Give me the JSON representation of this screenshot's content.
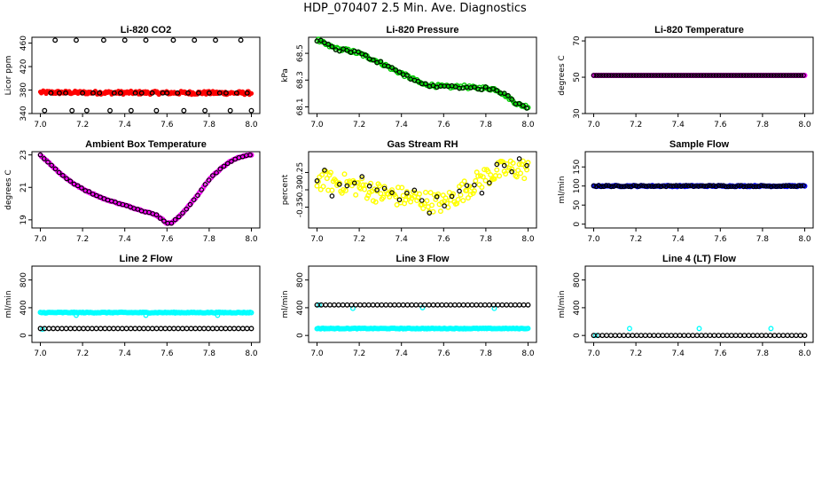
{
  "title": "HDP_070407  2.5 Min. Ave. Diagnostics",
  "colors": {
    "black": "#000000",
    "red": "#ff0000",
    "green": "#00cc00",
    "magenta": "#ff00ff",
    "yellow": "#ffff00",
    "blue": "#0000ff",
    "cyan": "#00ffff"
  },
  "chart_data": [
    {
      "id": "co2",
      "type": "scatter",
      "title": "Li-820 CO2",
      "ylabel": "Licor ppm",
      "xlim": [
        7.0,
        8.0
      ],
      "ylim": [
        340,
        470
      ],
      "xticks": [
        "7.0",
        "7.2",
        "7.4",
        "7.6",
        "7.8",
        "8.0"
      ],
      "yticks": [
        {
          "v": 340,
          "label": "340"
        },
        {
          "v": 380,
          "label": "380"
        },
        {
          "v": 420,
          "label": "420"
        },
        {
          "v": 460,
          "label": "460"
        }
      ],
      "series": [
        {
          "color": "red",
          "style": "band",
          "x": [
            7.0,
            8.0
          ],
          "y": [
            376,
            375
          ],
          "halfwidth": 3
        },
        {
          "color": "black",
          "style": "open",
          "x": [
            7.02,
            7.05,
            7.07,
            7.09,
            7.12,
            7.15,
            7.17,
            7.2,
            7.22,
            7.25,
            7.28,
            7.3,
            7.33,
            7.35,
            7.38,
            7.4,
            7.43,
            7.45,
            7.48,
            7.5,
            7.53,
            7.55,
            7.58,
            7.6,
            7.63,
            7.65,
            7.68,
            7.7,
            7.73,
            7.75,
            7.78,
            7.8,
            7.83,
            7.85,
            7.88,
            7.9,
            7.93,
            7.95,
            7.98,
            8.0
          ],
          "y": [
            345,
            375,
            465,
            375,
            375,
            345,
            465,
            375,
            345,
            375,
            375,
            465,
            345,
            375,
            375,
            465,
            345,
            375,
            375,
            465,
            375,
            345,
            375,
            375,
            465,
            375,
            345,
            375,
            465,
            375,
            345,
            375,
            465,
            375,
            375,
            345,
            375,
            465,
            375,
            345
          ]
        }
      ]
    },
    {
      "id": "pressure",
      "type": "scatter",
      "title": "Li-820 Pressure",
      "ylabel": "kPa",
      "xlim": [
        7.0,
        8.0
      ],
      "ylim": [
        68.05,
        68.62
      ],
      "xticks": [
        "7.0",
        "7.2",
        "7.4",
        "7.6",
        "7.8",
        "8.0"
      ],
      "yticks": [
        {
          "v": 68.1,
          "label": "68.1"
        },
        {
          "v": 68.3,
          "label": "68.3"
        },
        {
          "v": 68.5,
          "label": "68.5"
        }
      ],
      "series": [
        {
          "color": "green",
          "style": "curve",
          "x": [
            7.0,
            7.05,
            7.1,
            7.15,
            7.2,
            7.3,
            7.4,
            7.5,
            7.6,
            7.7,
            7.75,
            7.8,
            7.85,
            7.9,
            7.95,
            8.0
          ],
          "y": [
            68.6,
            68.56,
            68.53,
            68.52,
            68.5,
            68.43,
            68.35,
            68.27,
            68.25,
            68.25,
            68.24,
            68.24,
            68.23,
            68.18,
            68.12,
            68.1
          ],
          "jitter": 0.012
        },
        {
          "color": "black",
          "style": "open",
          "every": 3
        }
      ]
    },
    {
      "id": "temp",
      "type": "scatter",
      "title": "Li-820 Temperature",
      "ylabel": "degrees C",
      "xlim": [
        7.0,
        8.0
      ],
      "ylim": [
        30,
        72
      ],
      "xticks": [
        "7.0",
        "7.2",
        "7.4",
        "7.6",
        "7.8",
        "8.0"
      ],
      "yticks": [
        {
          "v": 30,
          "label": "30"
        },
        {
          "v": 50,
          "label": "50"
        },
        {
          "v": 70,
          "label": "70"
        }
      ],
      "series": [
        {
          "color": "magenta",
          "style": "curve",
          "x": [
            7.0,
            8.0
          ],
          "y": [
            51,
            51
          ],
          "jitter": 0
        },
        {
          "color": "black",
          "style": "open",
          "every": 2
        }
      ]
    },
    {
      "id": "ambient",
      "type": "scatter",
      "title": "Ambient Box Temperature",
      "ylabel": "degrees C",
      "xlim": [
        7.0,
        8.0
      ],
      "ylim": [
        18.5,
        23.2
      ],
      "xticks": [
        "7.0",
        "7.2",
        "7.4",
        "7.6",
        "7.8",
        "8.0"
      ],
      "yticks": [
        {
          "v": 19,
          "label": "19"
        },
        {
          "v": 21,
          "label": "21"
        },
        {
          "v": 23,
          "label": "23"
        }
      ],
      "series": [
        {
          "color": "magenta",
          "style": "curve",
          "x": [
            7.0,
            7.05,
            7.1,
            7.15,
            7.2,
            7.25,
            7.3,
            7.35,
            7.4,
            7.45,
            7.5,
            7.55,
            7.6,
            7.62,
            7.65,
            7.7,
            7.75,
            7.8,
            7.85,
            7.9,
            7.95,
            8.0
          ],
          "y": [
            23.0,
            22.4,
            21.8,
            21.3,
            20.9,
            20.6,
            20.3,
            20.1,
            19.9,
            19.7,
            19.5,
            19.3,
            18.8,
            18.8,
            19.1,
            19.8,
            20.6,
            21.5,
            22.1,
            22.6,
            22.9,
            23.0
          ],
          "jitter": 0.03
        },
        {
          "color": "black",
          "style": "open",
          "every": 3
        }
      ]
    },
    {
      "id": "rh",
      "type": "scatter",
      "title": "Gas Stream RH",
      "ylabel": "percent",
      "xlim": [
        7.0,
        8.0
      ],
      "ylim": [
        -0.41,
        -0.19
      ],
      "xticks": [
        "7.0",
        "7.2",
        "7.4",
        "7.6",
        "7.8",
        "8.0"
      ],
      "yticks": [
        {
          "v": -0.35,
          "label": "-0.35"
        },
        {
          "v": -0.3,
          "label": "-0.30"
        },
        {
          "v": -0.25,
          "label": "-0.25"
        }
      ],
      "series": [
        {
          "color": "yellow",
          "style": "curve",
          "x": [
            7.0,
            7.1,
            7.2,
            7.3,
            7.4,
            7.5,
            7.6,
            7.7,
            7.8,
            7.9,
            8.0
          ],
          "y": [
            -0.27,
            -0.28,
            -0.29,
            -0.31,
            -0.32,
            -0.33,
            -0.34,
            -0.3,
            -0.26,
            -0.24,
            -0.24
          ],
          "jitter": 0.03
        },
        {
          "color": "black",
          "style": "open",
          "every": 6,
          "jitter": 0.02
        }
      ]
    },
    {
      "id": "sample",
      "type": "scatter",
      "title": "Sample Flow",
      "ylabel": "ml/min",
      "xlim": [
        7.0,
        8.0
      ],
      "ylim": [
        -10,
        190
      ],
      "xticks": [
        "7.0",
        "7.2",
        "7.4",
        "7.6",
        "7.8",
        "8.0"
      ],
      "yticks": [
        {
          "v": 0,
          "label": "0"
        },
        {
          "v": 50,
          "label": "50"
        },
        {
          "v": 100,
          "label": "100"
        },
        {
          "v": 150,
          "label": "150"
        }
      ],
      "series": [
        {
          "color": "blue",
          "style": "curve",
          "x": [
            7.0,
            8.0
          ],
          "y": [
            100,
            100
          ],
          "jitter": 1.5
        },
        {
          "color": "black",
          "style": "open",
          "every": 2
        }
      ]
    },
    {
      "id": "line2",
      "type": "scatter",
      "title": "Line 2 Flow",
      "ylabel": "ml/min",
      "xlim": [
        7.0,
        8.0
      ],
      "ylim": [
        -100,
        1000
      ],
      "xticks": [
        "7.0",
        "7.2",
        "7.4",
        "7.6",
        "7.8",
        "8.0"
      ],
      "yticks": [
        {
          "v": 0,
          "label": "0"
        },
        {
          "v": 400,
          "label": "400"
        },
        {
          "v": 800,
          "label": "800"
        }
      ],
      "series": [
        {
          "color": "cyan",
          "style": "curve",
          "x": [
            7.0,
            8.0
          ],
          "y": [
            330,
            330
          ],
          "jitter": 6
        },
        {
          "color": "cyan",
          "style": "open",
          "x": [
            7.01,
            7.17,
            7.5,
            7.84
          ],
          "y": [
            90,
            290,
            290,
            290
          ]
        },
        {
          "color": "black",
          "style": "openline",
          "x": [
            7.0,
            8.0
          ],
          "y": [
            100,
            100
          ],
          "n": 50
        }
      ]
    },
    {
      "id": "line3",
      "type": "scatter",
      "title": "Line 3 Flow",
      "ylabel": "ml/min",
      "xlim": [
        7.0,
        8.0
      ],
      "ylim": [
        -100,
        1000
      ],
      "xticks": [
        "7.0",
        "7.2",
        "7.4",
        "7.6",
        "7.8",
        "8.0"
      ],
      "yticks": [
        {
          "v": 0,
          "label": "0"
        },
        {
          "v": 400,
          "label": "400"
        },
        {
          "v": 800,
          "label": "800"
        }
      ],
      "series": [
        {
          "color": "cyan",
          "style": "curve",
          "x": [
            7.0,
            8.0
          ],
          "y": [
            100,
            100
          ],
          "jitter": 5
        },
        {
          "color": "cyan",
          "style": "open",
          "x": [
            7.01,
            7.17,
            7.5,
            7.84
          ],
          "y": [
            440,
            390,
            400,
            390
          ]
        },
        {
          "color": "black",
          "style": "openline",
          "x": [
            7.0,
            8.0
          ],
          "y": [
            440,
            440
          ],
          "n": 50
        }
      ]
    },
    {
      "id": "line4",
      "type": "scatter",
      "title": "Line 4 (LT) Flow",
      "ylabel": "ml/min",
      "xlim": [
        7.0,
        8.0
      ],
      "ylim": [
        -100,
        1000
      ],
      "xticks": [
        "7.0",
        "7.2",
        "7.4",
        "7.6",
        "7.8",
        "8.0"
      ],
      "yticks": [
        {
          "v": 0,
          "label": "0"
        },
        {
          "v": 400,
          "label": "400"
        },
        {
          "v": 800,
          "label": "800"
        }
      ],
      "series": [
        {
          "color": "cyan",
          "style": "open",
          "x": [
            7.01,
            7.17,
            7.5,
            7.84
          ],
          "y": [
            0,
            100,
            100,
            100
          ]
        },
        {
          "color": "black",
          "style": "openline",
          "x": [
            7.0,
            8.0
          ],
          "y": [
            0,
            0
          ],
          "n": 50
        }
      ]
    }
  ]
}
